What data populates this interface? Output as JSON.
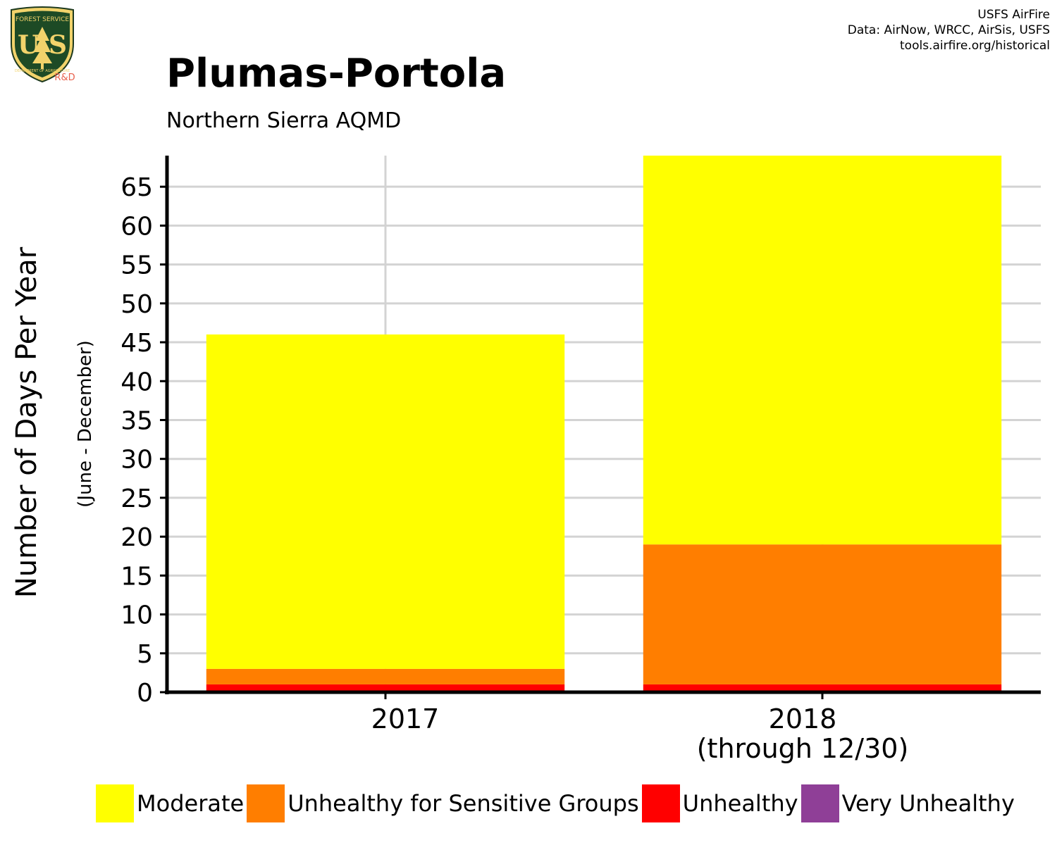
{
  "header": {
    "title": "Plumas-Portola",
    "subtitle": "Northern Sierra AQMD",
    "credits": [
      "USFS AirFire",
      "Data: AirNow, WRCC, AirSis, USFS",
      "tools.airfire.org/historical"
    ]
  },
  "logo": {
    "top_text": "FOREST SERVICE",
    "letters": "U S",
    "bottom_text": "DEPARTMENT OF AGRICULTURE",
    "badge": "R&D",
    "icon": "forest-service-shield-icon"
  },
  "chart_data": {
    "type": "bar",
    "stacked": true,
    "title": "Plumas-Portola",
    "subtitle": "Northern Sierra AQMD",
    "ylabel": "Number of Days Per Year",
    "ylabel_sub": "(June - December)",
    "xlabel": "",
    "categories": [
      "2017",
      "2018"
    ],
    "category_sublabels": [
      "",
      "(through 12/30)"
    ],
    "ylim": [
      0,
      69
    ],
    "yticks": [
      0,
      5,
      10,
      15,
      20,
      25,
      30,
      35,
      40,
      45,
      50,
      55,
      60,
      65
    ],
    "grid": true,
    "legend_position": "bottom",
    "series": [
      {
        "name": "Unhealthy",
        "color": "#ff0000",
        "values": [
          1,
          1
        ]
      },
      {
        "name": "Unhealthy for Sensitive Groups",
        "color": "#ff7e00",
        "values": [
          2,
          18
        ]
      },
      {
        "name": "Moderate",
        "color": "#ffff00",
        "values": [
          43,
          50
        ]
      },
      {
        "name": "Very Unhealthy",
        "color": "#8f3f97",
        "values": [
          0,
          0
        ]
      }
    ],
    "legend": [
      {
        "name": "Moderate",
        "color": "#ffff00"
      },
      {
        "name": "Unhealthy for Sensitive Groups",
        "color": "#ff7e00"
      },
      {
        "name": "Unhealthy",
        "color": "#ff0000"
      },
      {
        "name": "Very Unhealthy",
        "color": "#8f3f97"
      }
    ]
  }
}
